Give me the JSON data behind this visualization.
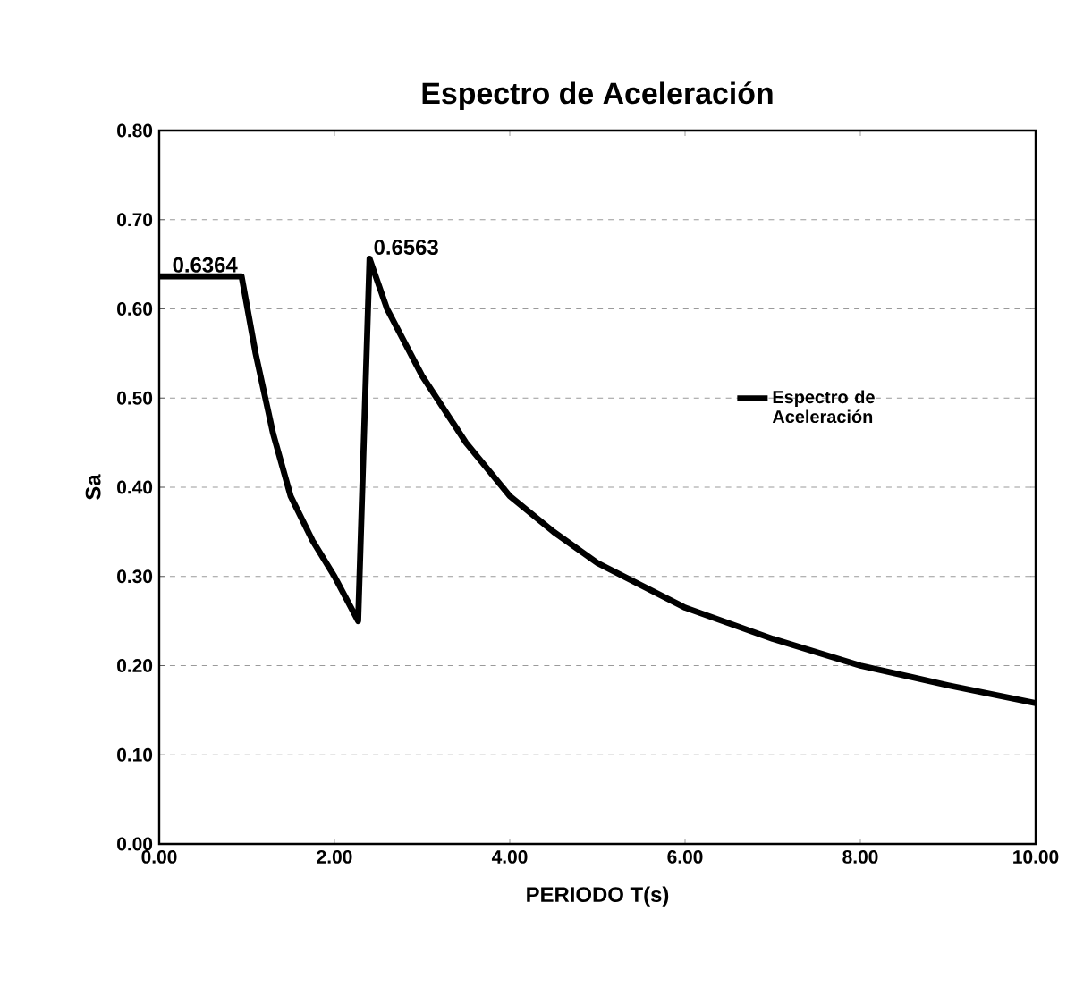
{
  "chart_data": {
    "type": "line",
    "title": "Espectro de Aceleración",
    "xlabel": "PERIODO T(s)",
    "ylabel": "Sa",
    "x": [
      0,
      0.94,
      1.1,
      1.3,
      1.5,
      1.75,
      2.0,
      2.27,
      2.4,
      2.6,
      3.0,
      3.5,
      4.0,
      4.5,
      5.0,
      5.5,
      6.0,
      7.0,
      8.0,
      9.0,
      10.0
    ],
    "series": [
      {
        "name": "Espectro de Aceleración",
        "color": "#000000",
        "values": [
          0.6364,
          0.6364,
          0.55,
          0.46,
          0.39,
          0.34,
          0.3,
          0.25,
          0.6563,
          0.6,
          0.525,
          0.45,
          0.39,
          0.35,
          0.315,
          0.29,
          0.265,
          0.23,
          0.2,
          0.178,
          0.158
        ]
      }
    ],
    "xlim": [
      0,
      10
    ],
    "ylim": [
      0,
      0.8
    ],
    "xticks": [
      {
        "value": 0,
        "label": "0.00"
      },
      {
        "value": 2,
        "label": "2.00"
      },
      {
        "value": 4,
        "label": "4.00"
      },
      {
        "value": 6,
        "label": "6.00"
      },
      {
        "value": 8,
        "label": "8.00"
      },
      {
        "value": 10,
        "label": "10.00"
      }
    ],
    "yticks": [
      {
        "value": 0,
        "label": "0.00"
      },
      {
        "value": 0.1,
        "label": "0.10"
      },
      {
        "value": 0.2,
        "label": "0.20"
      },
      {
        "value": 0.3,
        "label": "0.30"
      },
      {
        "value": 0.4,
        "label": "0.40"
      },
      {
        "value": 0.5,
        "label": "0.50"
      },
      {
        "value": 0.6,
        "label": "0.60"
      },
      {
        "value": 0.7,
        "label": "0.70"
      },
      {
        "value": 0.8,
        "label": "0.80"
      }
    ],
    "grid": "y",
    "legend": "right",
    "marker": "none",
    "line_style": "solid",
    "annotations": [
      {
        "text": "0.6364",
        "x": 0.94,
        "y": 0.6364
      },
      {
        "text": "0.6563",
        "x": 2.4,
        "y": 0.6563
      }
    ]
  }
}
